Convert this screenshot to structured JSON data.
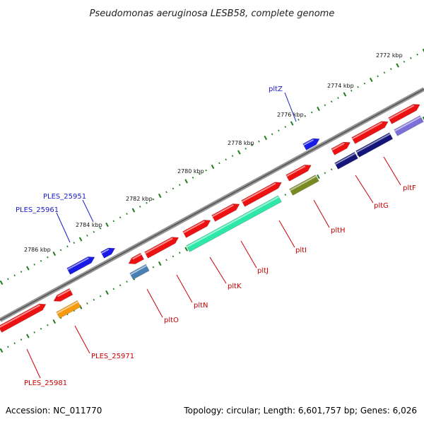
{
  "title": "Pseudomonas aeruginosa LESB58, complete genome",
  "footer": {
    "accession": "Accession: NC_011770",
    "summary": "Topology: circular; Length: 6,601,757 bp; Genes: 6,026"
  },
  "ticks": [
    "2772 kbp",
    "2774 kbp",
    "2776 kbp",
    "2778 kbp",
    "2780 kbp",
    "2782 kbp",
    "2784 kbp",
    "2786 kbp"
  ],
  "colors": {
    "backbone": "#888888",
    "tick": "#1e7d1e",
    "forward_gene": "#ee1111",
    "blue_gene": "#1a1ae6",
    "navy_gene": "#14147a",
    "lavender_gene": "#7c6fd8",
    "teal_gene": "#2ee8a8",
    "olive_gene": "#7a8a22",
    "steel_gene": "#4a7fb5",
    "orange_gene": "#f59a10",
    "red_label": "#cc0000",
    "blue_label": "#1a1acc"
  },
  "labels": {
    "pltZ": "pltZ",
    "PLES_25951": "PLES_25951",
    "PLES_25961": "PLES_25961",
    "pltF": "pltF",
    "pltG": "pltG",
    "pltH": "pltH",
    "pltI": "pltI",
    "pltJ": "pltJ",
    "pltK": "pltK",
    "pltN": "pltN",
    "pltO": "pltO",
    "PLES_25971": "PLES_25971",
    "PLES_25981": "PLES_25981"
  }
}
